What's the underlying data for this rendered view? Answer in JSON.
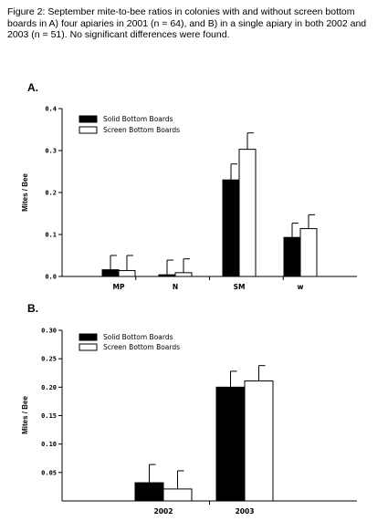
{
  "caption": "Figure 2: September mite-to-bee ratios in colonies with and without screen bottom boards in A) four apiaries in 2001 (n = 64), and B) in a single apiary in both 2002 and 2003 (n = 51). No significant differences were found.",
  "colors": {
    "solid": "#000000",
    "screen": "#ffffff",
    "axis": "#000000"
  },
  "chart_data": [
    {
      "panel_label": "A.",
      "type": "bar",
      "ylabel": "Mites / Bee",
      "ylim": [
        0,
        0.4
      ],
      "yticks": [
        0.0,
        0.1,
        0.2,
        0.3,
        0.4
      ],
      "ytick_labels": [
        "0.0",
        "0.1",
        "0.2",
        "0.3",
        "0.4"
      ],
      "categories": [
        "MP",
        "N",
        "SM",
        "w"
      ],
      "legend_position": "top-left",
      "series": [
        {
          "name": "Solid Bottom Boards",
          "values": [
            0.016,
            0.004,
            0.23,
            0.093
          ],
          "errors": [
            0.034,
            0.035,
            0.038,
            0.034
          ]
        },
        {
          "name": "Screen Bottom Boards",
          "values": [
            0.014,
            0.009,
            0.303,
            0.114
          ],
          "errors": [
            0.036,
            0.033,
            0.039,
            0.033
          ]
        }
      ]
    },
    {
      "panel_label": "B.",
      "type": "bar",
      "ylabel": "Mites / Bee",
      "ylim": [
        0,
        0.3
      ],
      "yticks": [
        0.05,
        0.1,
        0.15,
        0.2,
        0.25,
        0.3
      ],
      "ytick_labels": [
        "0.05",
        "0.10",
        "0.15",
        "0.20",
        "0.25",
        "0.30"
      ],
      "categories": [
        "2002",
        "2003"
      ],
      "legend_position": "top-left",
      "series": [
        {
          "name": "Solid Bottom Boards",
          "values": [
            0.032,
            0.2
          ],
          "errors": [
            0.032,
            0.028
          ]
        },
        {
          "name": "Screen Bottom Boards",
          "values": [
            0.021,
            0.211
          ],
          "errors": [
            0.032,
            0.027
          ]
        }
      ]
    }
  ]
}
